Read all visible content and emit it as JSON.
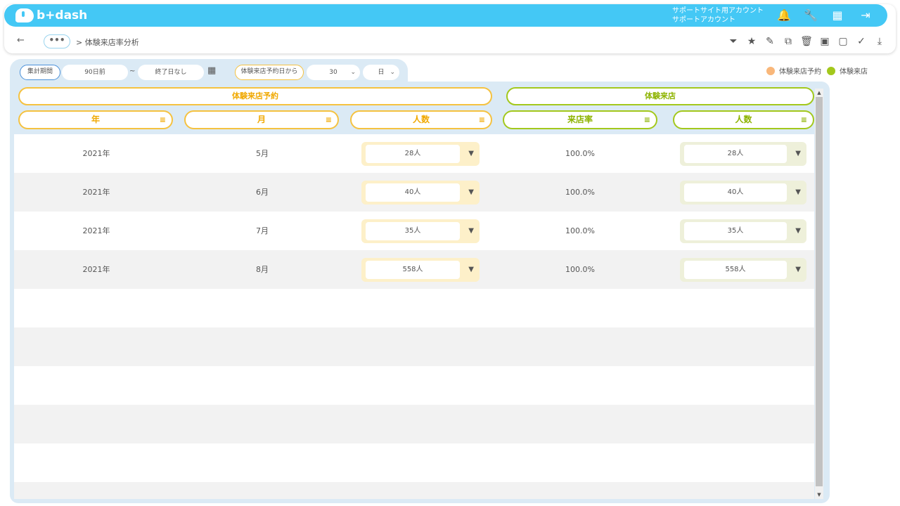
{
  "app": {
    "logo_text": "b+dash",
    "account_line1": "サポートサイト用アカウント",
    "account_line2": "サポートアカウント"
  },
  "nav": {
    "back_icon": "←",
    "more_label": "•••",
    "breadcrumb": "> 体験来店率分析"
  },
  "icons": {
    "bell": "🔔",
    "wrench": "🔧",
    "grid": "▦",
    "logout": "⇥",
    "filter": "⏷",
    "star": "★",
    "edit": "✎",
    "copy": "⧉",
    "trash": "🗑",
    "archive": "▣",
    "unarchive": "▢",
    "user_check": "✓",
    "download": "⤓",
    "calendar": "▦",
    "chevron": "⌄",
    "sort_filter": "≡",
    "caret": "▼"
  },
  "filters": {
    "period_label": "集計期間",
    "start_value": "90日前",
    "tilde": "~",
    "end_value": "終了日なし",
    "basis_label": "体験来店予約日から",
    "offset_value": "30",
    "unit_value": "日"
  },
  "legend": [
    {
      "label": "体験来店予約",
      "color": "#f9b77a"
    },
    {
      "label": "体験来店",
      "color": "#a3c81c"
    }
  ],
  "groups": {
    "reservation": "体験来店予約",
    "visit": "体験来店"
  },
  "columns": {
    "year": "年",
    "month": "月",
    "count1": "人数",
    "rate": "来店率",
    "count2": "人数"
  },
  "rows": [
    {
      "year": "2021年",
      "month": "5月",
      "reserve_count": "28人",
      "rate": "100.0%",
      "visit_count": "28人"
    },
    {
      "year": "2021年",
      "month": "6月",
      "reserve_count": "40人",
      "rate": "100.0%",
      "visit_count": "40人"
    },
    {
      "year": "2021年",
      "month": "7月",
      "reserve_count": "35人",
      "rate": "100.0%",
      "visit_count": "35人"
    },
    {
      "year": "2021年",
      "month": "8月",
      "reserve_count": "558人",
      "rate": "100.0%",
      "visit_count": "558人"
    }
  ],
  "colors": {
    "brand": "#44c8f5",
    "orange": "#f5c240",
    "orange_text": "#f0a800",
    "green": "#a3c81c",
    "green_text": "#8db300"
  },
  "scrollbar": {
    "up": "▲",
    "down": "▼"
  }
}
